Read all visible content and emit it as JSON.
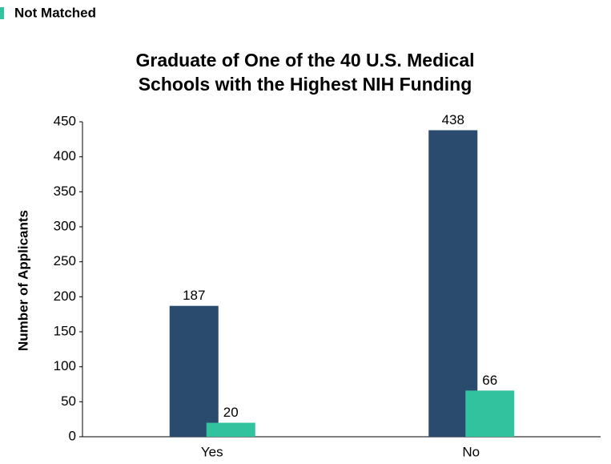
{
  "chart_data": {
    "type": "bar",
    "legend": "Not Matched",
    "title": [
      "Graduate of One of the 40 U.S. Medical",
      "Schools with the Highest NIH Funding"
    ],
    "y_label": "Number of Applicants",
    "categories": [
      "Yes",
      "No"
    ],
    "series": [
      {
        "color": "#2a4a6e",
        "values": [
          187,
          438
        ]
      },
      {
        "name": "Not Matched",
        "color": "#33c29e",
        "values": [
          20,
          66
        ]
      }
    ],
    "ylim": [
      0,
      450
    ],
    "yticks": [
      0,
      50,
      100,
      150,
      200,
      250,
      300,
      350,
      400,
      450
    ],
    "grid": false
  }
}
